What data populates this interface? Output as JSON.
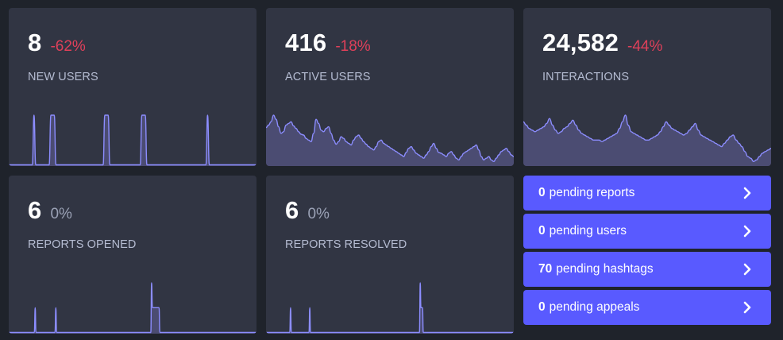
{
  "metrics": [
    {
      "id": "new-users",
      "value": "8",
      "change": "-62%",
      "change_kind": "negative",
      "label": "NEW USERS",
      "spark": [
        0,
        0,
        0,
        0,
        0,
        0,
        0,
        0,
        0,
        0,
        0,
        0,
        0,
        0,
        0,
        1,
        0,
        0,
        0,
        0,
        0,
        0,
        0,
        0,
        0,
        1,
        1,
        1,
        0,
        0,
        0,
        0,
        0,
        0,
        0,
        0,
        0,
        0,
        0,
        0,
        0,
        0,
        0,
        0,
        0,
        0,
        0,
        0,
        0,
        0,
        0,
        0,
        0,
        0,
        0,
        0,
        0,
        1,
        1,
        1,
        0,
        0,
        0,
        0,
        0,
        0,
        0,
        0,
        0,
        0,
        0,
        0,
        0,
        0,
        0,
        0,
        0,
        0,
        0,
        1,
        1,
        1,
        0,
        0,
        0,
        0,
        0,
        0,
        0,
        0,
        0,
        0,
        0,
        0,
        0,
        0,
        0,
        0,
        0,
        0,
        0,
        0,
        0,
        0,
        0,
        0,
        0,
        0,
        0,
        0,
        0,
        0,
        0,
        0,
        0,
        0,
        0,
        0,
        1,
        0,
        0,
        0,
        0,
        0,
        0,
        0,
        0,
        0,
        0,
        0,
        0,
        0,
        0,
        0,
        0,
        0,
        0,
        0,
        0,
        0,
        0,
        0,
        0,
        0,
        0,
        0,
        0,
        0
      ]
    },
    {
      "id": "active-users",
      "value": "416",
      "change": "-18%",
      "change_kind": "negative",
      "label": "ACTIVE USERS",
      "spark": [
        45,
        48,
        52,
        60,
        55,
        46,
        38,
        40,
        48,
        50,
        52,
        47,
        44,
        40,
        37,
        36,
        32,
        30,
        28,
        38,
        55,
        50,
        42,
        40,
        44,
        46,
        38,
        30,
        25,
        28,
        34,
        32,
        28,
        26,
        24,
        30,
        34,
        36,
        32,
        28,
        25,
        22,
        20,
        18,
        22,
        28,
        30,
        26,
        24,
        22,
        20,
        18,
        16,
        14,
        12,
        10,
        15,
        20,
        22,
        18,
        14,
        12,
        10,
        8,
        12,
        16,
        22,
        26,
        20,
        15,
        14,
        12,
        10,
        14,
        16,
        12,
        8,
        6,
        10,
        14,
        16,
        18,
        20,
        22,
        24,
        18,
        10,
        6,
        8,
        10,
        6,
        4,
        8,
        12,
        16,
        18,
        20,
        16,
        12,
        10
      ]
    },
    {
      "id": "interactions",
      "value": "24,582",
      "change": "-44%",
      "change_kind": "negative",
      "label": "INTERACTIONS",
      "spark": [
        52,
        48,
        44,
        42,
        40,
        42,
        44,
        46,
        50,
        56,
        48,
        42,
        38,
        40,
        44,
        46,
        50,
        54,
        48,
        42,
        38,
        36,
        34,
        32,
        30,
        30,
        30,
        28,
        30,
        32,
        34,
        36,
        38,
        44,
        52,
        60,
        48,
        40,
        38,
        36,
        34,
        32,
        30,
        30,
        32,
        34,
        36,
        40,
        46,
        52,
        48,
        44,
        42,
        40,
        38,
        36,
        38,
        42,
        46,
        50,
        42,
        36,
        34,
        32,
        30,
        28,
        26,
        24,
        22,
        26,
        30,
        34,
        36,
        30,
        26,
        22,
        16,
        10,
        8,
        4,
        6,
        10,
        14,
        16,
        18,
        20
      ]
    },
    {
      "id": "reports-opened",
      "value": "6",
      "change": "0%",
      "change_kind": "zero",
      "label": "REPORTS OPENED",
      "spark": [
        0,
        0,
        0,
        0,
        0,
        0,
        0,
        0,
        0,
        0,
        0,
        0,
        0,
        0,
        0,
        0,
        0,
        0,
        0,
        0,
        0,
        0,
        0,
        0,
        0,
        0,
        0,
        0,
        0,
        0,
        0,
        0,
        1,
        0,
        0,
        0,
        0,
        0,
        0,
        0,
        0,
        0,
        0,
        0,
        0,
        0,
        0,
        0,
        0,
        0,
        0,
        0,
        0,
        0,
        0,
        0,
        0,
        1,
        0,
        0,
        0,
        0,
        0,
        0,
        0,
        0,
        0,
        0,
        0,
        0,
        0,
        0,
        0,
        0,
        0,
        0,
        0,
        0,
        0,
        0,
        0,
        0,
        0,
        0,
        0,
        0,
        0,
        0,
        0,
        0,
        0,
        0,
        0,
        0,
        0,
        0,
        0,
        0,
        0,
        0,
        0,
        0,
        0,
        0,
        0,
        0,
        0,
        0,
        0,
        0,
        0,
        0,
        0,
        0,
        0,
        0,
        0,
        0,
        0,
        0,
        0,
        0,
        0,
        0,
        0,
        0,
        0,
        0,
        0,
        0,
        0,
        0,
        0,
        0,
        0,
        0,
        0,
        0,
        0,
        0,
        0,
        0,
        0,
        0,
        0,
        0,
        0,
        0,
        0,
        0,
        0,
        0,
        0,
        0,
        0,
        0,
        0,
        0,
        0,
        0,
        0,
        0,
        0,
        0,
        0,
        0,
        0,
        0,
        0,
        0,
        0,
        0,
        0,
        2,
        1,
        1,
        1,
        1,
        1,
        1,
        1,
        1,
        1,
        0,
        0,
        0,
        0,
        0,
        0,
        0,
        0,
        0,
        0,
        0,
        0,
        0,
        0,
        0,
        0,
        0,
        0,
        0,
        0,
        0,
        0,
        0,
        0,
        0,
        0,
        0,
        0,
        0,
        0,
        0,
        0,
        0,
        0,
        0,
        0,
        0,
        0,
        0,
        0,
        0,
        0,
        0,
        0,
        0,
        0,
        0,
        0,
        0,
        0,
        0,
        0,
        0,
        0,
        0,
        0,
        0,
        0,
        0,
        0,
        0,
        0,
        0,
        0,
        0,
        0,
        0,
        0,
        0,
        0,
        0,
        0,
        0,
        0,
        0,
        0,
        0,
        0,
        0,
        0,
        0,
        0,
        0,
        0,
        0,
        0,
        0,
        0,
        0,
        0,
        0,
        0,
        0,
        0,
        0,
        0,
        0,
        0,
        0,
        0,
        0,
        0,
        0,
        0,
        0,
        0,
        0,
        0,
        0,
        0,
        0,
        0,
        0,
        0,
        0,
        0,
        0,
        0
      ]
    },
    {
      "id": "reports-resolved",
      "value": "6",
      "change": "0%",
      "change_kind": "zero",
      "label": "REPORTS RESOLVED",
      "spark": [
        0,
        0,
        0,
        0,
        0,
        0,
        0,
        0,
        0,
        0,
        0,
        0,
        0,
        0,
        0,
        0,
        0,
        0,
        0,
        0,
        0,
        0,
        0,
        0,
        0,
        0,
        0,
        0,
        0,
        0,
        0,
        0,
        1,
        0,
        0,
        0,
        0,
        0,
        0,
        0,
        0,
        0,
        0,
        0,
        0,
        0,
        0,
        0,
        0,
        0,
        0,
        0,
        0,
        0,
        0,
        0,
        0,
        1,
        0,
        0,
        0,
        0,
        0,
        0,
        0,
        0,
        0,
        0,
        0,
        0,
        0,
        0,
        0,
        0,
        0,
        0,
        0,
        0,
        0,
        0,
        0,
        0,
        0,
        0,
        0,
        0,
        0,
        0,
        0,
        0,
        0,
        0,
        0,
        0,
        0,
        0,
        0,
        0,
        0,
        0,
        0,
        0,
        0,
        0,
        0,
        0,
        0,
        0,
        0,
        0,
        0,
        0,
        0,
        0,
        0,
        0,
        0,
        0,
        0,
        0,
        0,
        0,
        0,
        0,
        0,
        0,
        0,
        0,
        0,
        0,
        0,
        0,
        0,
        0,
        0,
        0,
        0,
        0,
        0,
        0,
        0,
        0,
        0,
        0,
        0,
        0,
        0,
        0,
        0,
        0,
        0,
        0,
        0,
        0,
        0,
        0,
        0,
        0,
        0,
        0,
        0,
        0,
        0,
        0,
        0,
        0,
        0,
        0,
        0,
        0,
        0,
        0,
        0,
        0,
        0,
        0,
        0,
        0,
        0,
        0,
        0,
        0,
        0,
        0,
        0,
        0,
        0,
        0,
        0,
        0,
        0,
        0,
        0,
        0,
        0,
        0,
        0,
        0,
        0,
        0,
        0,
        2,
        1,
        1,
        1,
        0,
        0,
        0,
        0,
        0,
        0,
        0,
        0,
        0,
        0,
        0,
        0,
        0,
        0,
        0,
        0,
        0,
        0,
        0,
        0,
        0,
        0,
        0,
        0,
        0,
        0,
        0,
        0,
        0,
        0,
        0,
        0,
        0,
        0,
        0,
        0,
        0,
        0,
        0,
        0,
        0,
        0,
        0,
        0,
        0,
        0,
        0,
        0,
        0,
        0,
        0,
        0,
        0,
        0,
        0,
        0,
        0,
        0,
        0,
        0,
        0,
        0,
        0,
        0,
        0,
        0,
        0,
        0,
        0,
        0,
        0,
        0,
        0,
        0,
        0,
        0,
        0,
        0,
        0,
        0,
        0,
        0,
        0,
        0,
        0,
        0,
        0,
        0,
        0,
        0,
        0,
        0,
        0,
        0,
        0,
        0,
        0,
        0,
        0,
        0,
        0,
        0,
        0,
        0,
        0,
        0,
        0,
        0,
        0,
        0,
        0,
        0,
        0,
        0,
        0,
        0,
        0,
        0,
        0
      ]
    }
  ],
  "pending": [
    {
      "count": "0",
      "text": "pending reports"
    },
    {
      "count": "0",
      "text": "pending users"
    },
    {
      "count": "70",
      "text": "pending hashtags"
    },
    {
      "count": "0",
      "text": "pending appeals"
    }
  ],
  "colors": {
    "background": "#1f232b",
    "card": "#313543",
    "negative": "#df405a",
    "spark_stroke": "#8c8dff",
    "spark_fill": "#4b4c72",
    "pending_button": "#595aff"
  },
  "icons": {
    "pending_chevron": "chevron-right-icon"
  }
}
